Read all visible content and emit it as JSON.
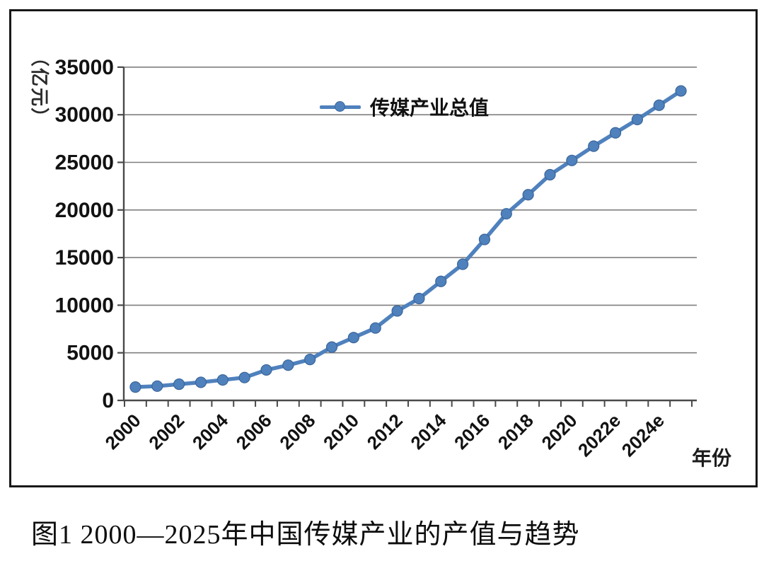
{
  "figure": {
    "caption": "图1  2000—2025年中国传媒产业的产值与趋势"
  },
  "chart_data": {
    "type": "line",
    "title": "",
    "legend_entries": [
      "传媒产业总值"
    ],
    "legend_position": "top-center-inside",
    "y_axis_unit": "（亿元）",
    "x_axis_title": "年份",
    "ylim": [
      0,
      35000
    ],
    "y_tick_step": 5000,
    "y_tick_labels": [
      "0",
      "5000",
      "10000",
      "15000",
      "20000",
      "25000",
      "30000",
      "35000"
    ],
    "grid": "horizontal",
    "categories": [
      "2000",
      "2001",
      "2002",
      "2003",
      "2004",
      "2005",
      "2006",
      "2007",
      "2008",
      "2009",
      "2010",
      "2011",
      "2012",
      "2013",
      "2014",
      "2015",
      "2016",
      "2017",
      "2018",
      "2019",
      "2020",
      "2021",
      "2022",
      "2023",
      "2024",
      "2025"
    ],
    "x_tick_labels": [
      "2000",
      "2002",
      "2004",
      "2006",
      "2008",
      "2010",
      "2012",
      "2014",
      "2016",
      "2018",
      "2020",
      "2022e",
      "2024e"
    ],
    "series": [
      {
        "name": "传媒产业总值",
        "values": [
          1400,
          1500,
          1700,
          1900,
          2150,
          2400,
          3200,
          3700,
          4300,
          5600,
          6600,
          7600,
          9400,
          10700,
          12500,
          14300,
          16900,
          19600,
          21600,
          23700,
          25200,
          26700,
          28100,
          29500,
          31000,
          32500
        ]
      }
    ]
  },
  "colors": {
    "series": "#4F81BD",
    "marker_edge": "#3A6598",
    "gridline": "#7F7F7F",
    "axis": "#4A4A4A",
    "tick_text": "#121212",
    "frame_border": "#181818",
    "background": "#FFFFFF"
  }
}
